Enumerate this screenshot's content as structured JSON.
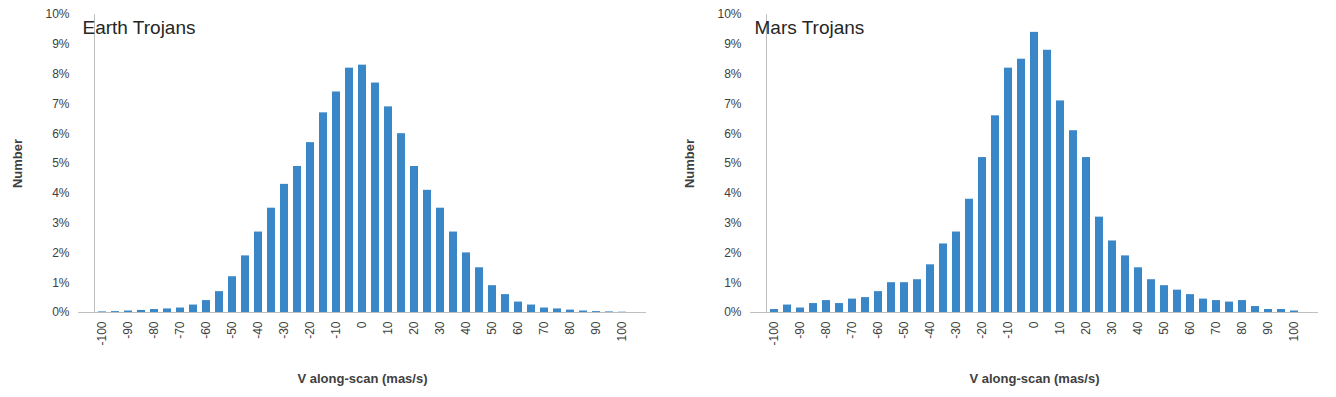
{
  "chart_data": [
    {
      "type": "bar",
      "title": "Earth Trojans",
      "xlabel": "V along-scan (mas/s)",
      "ylabel": "Number",
      "categories": [
        "-100",
        null,
        "-90",
        null,
        "-80",
        null,
        "-70",
        null,
        "-60",
        null,
        "-50",
        null,
        "-40",
        null,
        "-30",
        null,
        "-20",
        null,
        "-10",
        null,
        "0",
        null,
        "10",
        null,
        "20",
        null,
        "30",
        null,
        "40",
        null,
        "50",
        null,
        "60",
        null,
        "70",
        null,
        "80",
        null,
        "90",
        null,
        "100"
      ],
      "values": [
        0.02,
        0.03,
        0.05,
        0.07,
        0.1,
        0.12,
        0.15,
        0.25,
        0.4,
        0.7,
        1.2,
        1.9,
        2.7,
        3.5,
        4.3,
        4.9,
        5.7,
        6.7,
        7.4,
        8.2,
        8.3,
        7.7,
        6.9,
        6.0,
        4.9,
        4.1,
        3.5,
        2.7,
        2.0,
        1.5,
        0.9,
        0.6,
        0.35,
        0.25,
        0.15,
        0.12,
        0.08,
        0.05,
        0.03,
        0.02,
        0.01
      ],
      "color": "#3a87c8",
      "ylim": [
        0,
        10
      ],
      "yticks": [
        {
          "value": 0,
          "label": "0%"
        },
        {
          "value": 1,
          "label": "1%"
        },
        {
          "value": 2,
          "label": "2%"
        },
        {
          "value": 3,
          "label": "3%"
        },
        {
          "value": 4,
          "label": "4%"
        },
        {
          "value": 5,
          "label": "5%"
        },
        {
          "value": 6,
          "label": "6%"
        },
        {
          "value": 7,
          "label": "7%"
        },
        {
          "value": 8,
          "label": "8%"
        },
        {
          "value": 9,
          "label": "9%"
        },
        {
          "value": 10,
          "label": "10%"
        }
      ],
      "grid": false
    },
    {
      "type": "bar",
      "title": "Mars Trojans",
      "xlabel": "V along-scan (mas/s)",
      "ylabel": "Number",
      "categories": [
        "-100",
        null,
        "-90",
        null,
        "-80",
        null,
        "-70",
        null,
        "-60",
        null,
        "-50",
        null,
        "-40",
        null,
        "-30",
        null,
        "-20",
        null,
        "-10",
        null,
        "0",
        null,
        "10",
        null,
        "20",
        null,
        "30",
        null,
        "40",
        null,
        "50",
        null,
        "60",
        null,
        "70",
        null,
        "80",
        null,
        "90",
        null,
        "100"
      ],
      "values": [
        0.1,
        0.25,
        0.15,
        0.3,
        0.4,
        0.3,
        0.45,
        0.5,
        0.7,
        1.0,
        1.0,
        1.1,
        1.6,
        2.3,
        2.7,
        3.8,
        5.2,
        6.6,
        8.2,
        8.5,
        9.4,
        8.8,
        7.1,
        6.1,
        5.2,
        3.2,
        2.4,
        1.9,
        1.5,
        1.1,
        0.9,
        0.75,
        0.6,
        0.45,
        0.4,
        0.35,
        0.4,
        0.2,
        0.1,
        0.1,
        0.05
      ],
      "color": "#3a87c8",
      "ylim": [
        0,
        10
      ],
      "yticks": [
        {
          "value": 0,
          "label": "0%"
        },
        {
          "value": 1,
          "label": "1%"
        },
        {
          "value": 2,
          "label": "2%"
        },
        {
          "value": 3,
          "label": "3%"
        },
        {
          "value": 4,
          "label": "4%"
        },
        {
          "value": 5,
          "label": "5%"
        },
        {
          "value": 6,
          "label": "6%"
        },
        {
          "value": 7,
          "label": "7%"
        },
        {
          "value": 8,
          "label": "8%"
        },
        {
          "value": 9,
          "label": "9%"
        },
        {
          "value": 10,
          "label": "10%"
        }
      ],
      "grid": false
    }
  ]
}
